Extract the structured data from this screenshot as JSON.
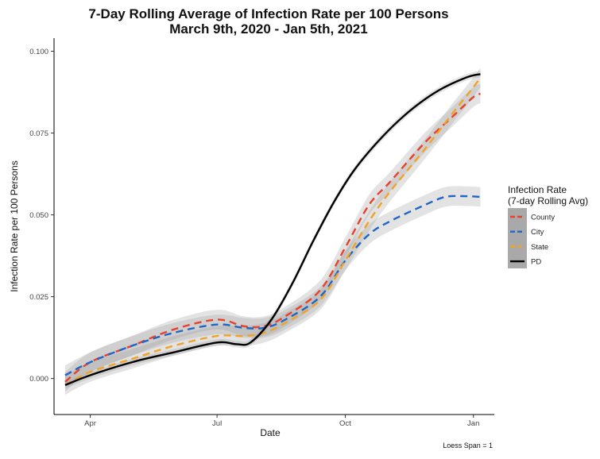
{
  "chart_data": {
    "type": "line",
    "title": "7-Day Rolling Average of Infection Rate per 100 Persons",
    "subtitle": "March 9th, 2020 - Jan 5th, 2021",
    "xlabel": "Date",
    "ylabel": "Infection Rate per 100 Persons",
    "x_ticks": [
      "Apr",
      "Jul",
      "Oct",
      "Jan"
    ],
    "y_ticks": [
      "0.000",
      "0.025",
      "0.050",
      "0.075",
      "0.100"
    ],
    "ylim": [
      -0.011,
      0.104
    ],
    "x_day_range": [
      -26,
      290
    ],
    "x_tick_days": [
      0,
      91,
      183,
      275
    ],
    "legend": {
      "title_line1": "Infection Rate",
      "title_line2": "(7-day Rolling Avg)",
      "position": "right"
    },
    "caption": "Loess Span = 1",
    "series": [
      {
        "name": "County",
        "color": "#e8412c",
        "dash": true,
        "band": 0.003,
        "points": [
          [
            -18,
            -0.001
          ],
          [
            0,
            0.005
          ],
          [
            30,
            0.01
          ],
          [
            60,
            0.015
          ],
          [
            91,
            0.018
          ],
          [
            110,
            0.016
          ],
          [
            125,
            0.016
          ],
          [
            140,
            0.019
          ],
          [
            165,
            0.027
          ],
          [
            183,
            0.04
          ],
          [
            200,
            0.053
          ],
          [
            215,
            0.06
          ],
          [
            240,
            0.072
          ],
          [
            260,
            0.08
          ],
          [
            275,
            0.086
          ],
          [
            280,
            0.087
          ]
        ]
      },
      {
        "name": "City",
        "color": "#1f66c6",
        "dash": true,
        "band": 0.003,
        "points": [
          [
            -18,
            0.001
          ],
          [
            0,
            0.005
          ],
          [
            30,
            0.01
          ],
          [
            60,
            0.014
          ],
          [
            91,
            0.0165
          ],
          [
            110,
            0.0155
          ],
          [
            125,
            0.0155
          ],
          [
            140,
            0.018
          ],
          [
            165,
            0.025
          ],
          [
            183,
            0.036
          ],
          [
            200,
            0.044
          ],
          [
            215,
            0.048
          ],
          [
            240,
            0.053
          ],
          [
            255,
            0.0555
          ],
          [
            270,
            0.0557
          ],
          [
            280,
            0.0555
          ]
        ]
      },
      {
        "name": "State",
        "color": "#f0a326",
        "dash": true,
        "band": 0.003,
        "points": [
          [
            -18,
            -0.002
          ],
          [
            0,
            0.002
          ],
          [
            30,
            0.006
          ],
          [
            60,
            0.01
          ],
          [
            91,
            0.013
          ],
          [
            110,
            0.013
          ],
          [
            125,
            0.014
          ],
          [
            140,
            0.017
          ],
          [
            165,
            0.024
          ],
          [
            183,
            0.036
          ],
          [
            200,
            0.048
          ],
          [
            215,
            0.057
          ],
          [
            240,
            0.07
          ],
          [
            260,
            0.081
          ],
          [
            275,
            0.089
          ],
          [
            280,
            0.092
          ]
        ]
      },
      {
        "name": "PD",
        "color": "#000000",
        "dash": false,
        "band": 0.001,
        "points": [
          [
            -18,
            -0.002
          ],
          [
            0,
            0.001
          ],
          [
            30,
            0.005
          ],
          [
            60,
            0.008
          ],
          [
            91,
            0.011
          ],
          [
            105,
            0.0105
          ],
          [
            115,
            0.011
          ],
          [
            130,
            0.018
          ],
          [
            145,
            0.029
          ],
          [
            160,
            0.042
          ],
          [
            175,
            0.054
          ],
          [
            190,
            0.064
          ],
          [
            210,
            0.074
          ],
          [
            230,
            0.082
          ],
          [
            250,
            0.088
          ],
          [
            270,
            0.092
          ],
          [
            280,
            0.093
          ]
        ]
      }
    ]
  }
}
